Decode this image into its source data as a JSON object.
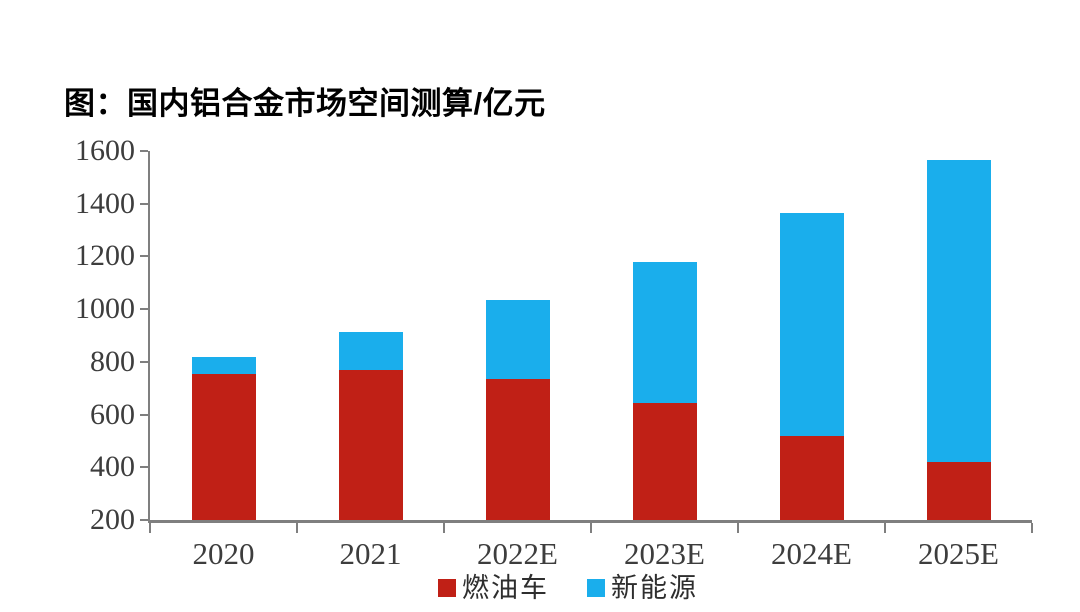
{
  "title_prefix": "图：",
  "chart_data": {
    "type": "bar",
    "stacked": true,
    "title": "图：国内铝合金市场空间测算/亿元",
    "unit": "亿元",
    "categories": [
      "2020",
      "2021",
      "2022E",
      "2023E",
      "2024E",
      "2025E"
    ],
    "series": [
      {
        "name": "燃油车",
        "color": "#c02016",
        "values": [
          555,
          570,
          535,
          445,
          320,
          220
        ]
      },
      {
        "name": "新能源",
        "color": "#1aaeec",
        "values": [
          65,
          145,
          300,
          535,
          845,
          1145
        ]
      }
    ],
    "totals": [
      620,
      715,
      835,
      980,
      1165,
      1365
    ],
    "xlabel": "",
    "ylabel": "",
    "ylim": [
      200,
      1600
    ],
    "yticks": [
      200,
      400,
      600,
      800,
      1000,
      1200,
      1400,
      1600
    ],
    "grid": false,
    "legend_position": "bottom",
    "axis_color": "#7f7f7f",
    "label_color": "#3d3d3d",
    "background": "#ffffff"
  }
}
